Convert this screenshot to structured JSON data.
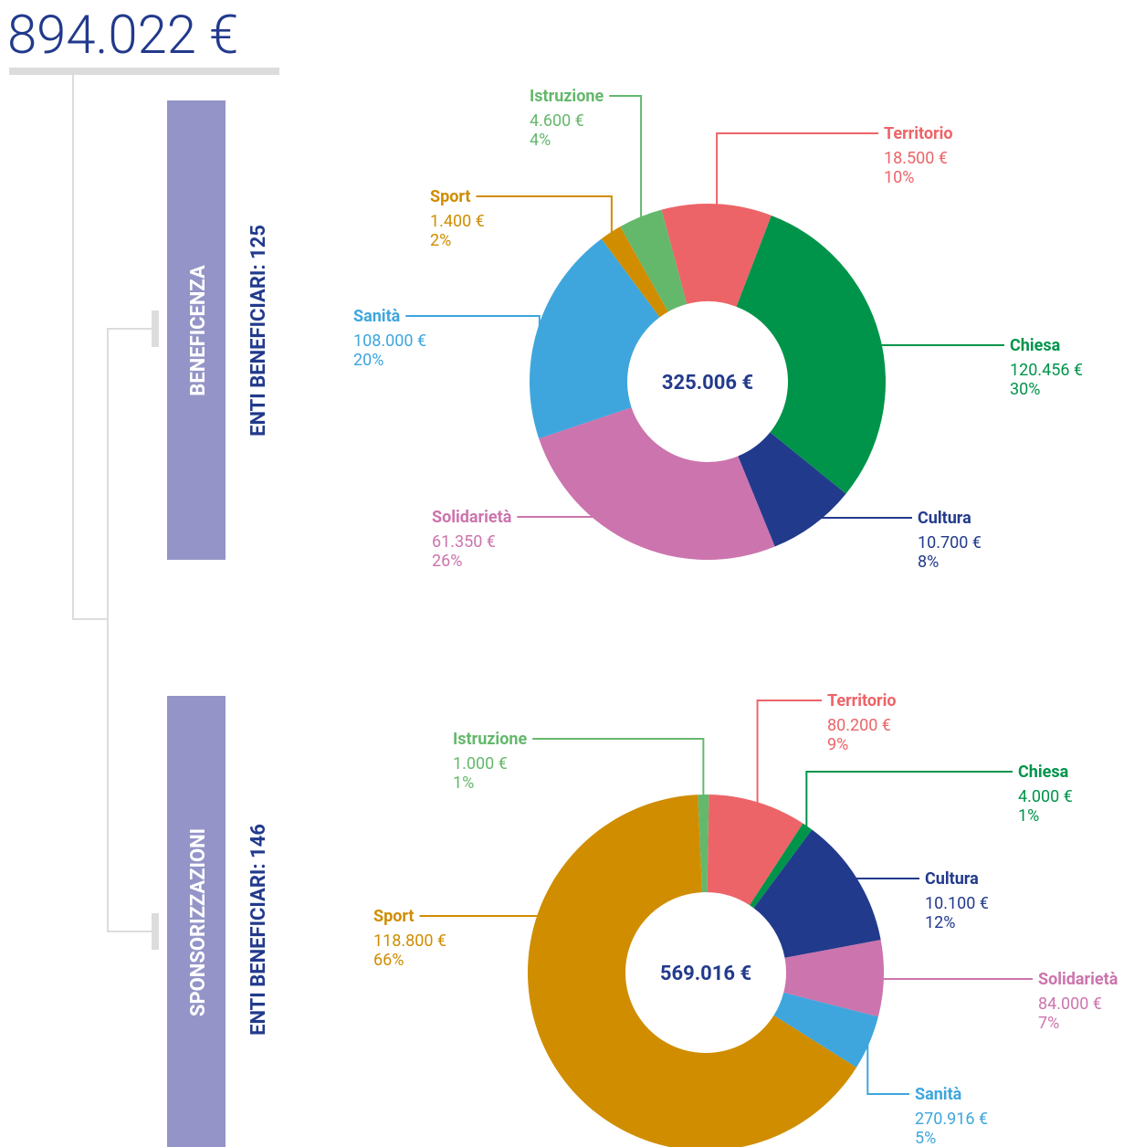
{
  "total": "894.022 €",
  "chart_data": [
    {
      "type": "donut",
      "section": "BENEFICENZA",
      "subtitle": "ENTI BENEFICIARI: 125",
      "center_label": "325.006 €",
      "categories": [
        "Territorio",
        "Chiesa",
        "Cultura",
        "Solidarietà",
        "Sanità",
        "Sport",
        "Istruzione"
      ],
      "values": [
        10,
        30,
        8,
        26,
        20,
        2,
        4
      ],
      "value_labels": [
        "10%",
        "30%",
        "8%",
        "26%",
        "20%",
        "2%",
        "4%"
      ],
      "amount_labels": [
        "18.500 €",
        "120.456 €",
        "10.700 €",
        "61.350 €",
        "108.000 €",
        "1.400 €",
        "4.600 €"
      ],
      "colors": [
        "#ec6468",
        "#00944a",
        "#223a8c",
        "#cc74ad",
        "#3ea6dd",
        "#d08d00",
        "#64b86c"
      ]
    },
    {
      "type": "donut",
      "section": "SPONSORIZZAZIONI",
      "subtitle": "ENTI BENEFICIARI: 146",
      "center_label": "569.016 €",
      "categories": [
        "Territorio",
        "Chiesa",
        "Cultura",
        "Solidarietà",
        "Sanità",
        "Sport",
        "Istruzione"
      ],
      "values": [
        9,
        1,
        12,
        7,
        5,
        66,
        1
      ],
      "value_labels": [
        "9%",
        "1%",
        "12%",
        "7%",
        "5%",
        "66%",
        "1%"
      ],
      "amount_labels": [
        "80.200 €",
        "4.000 €",
        "10.100 €",
        "84.000 €",
        "270.916 €",
        "118.800 €",
        "1.000 €"
      ],
      "colors": [
        "#ec6468",
        "#00944a",
        "#223a8c",
        "#cc74ad",
        "#3ea6dd",
        "#d08d00",
        "#64b86c"
      ]
    }
  ]
}
